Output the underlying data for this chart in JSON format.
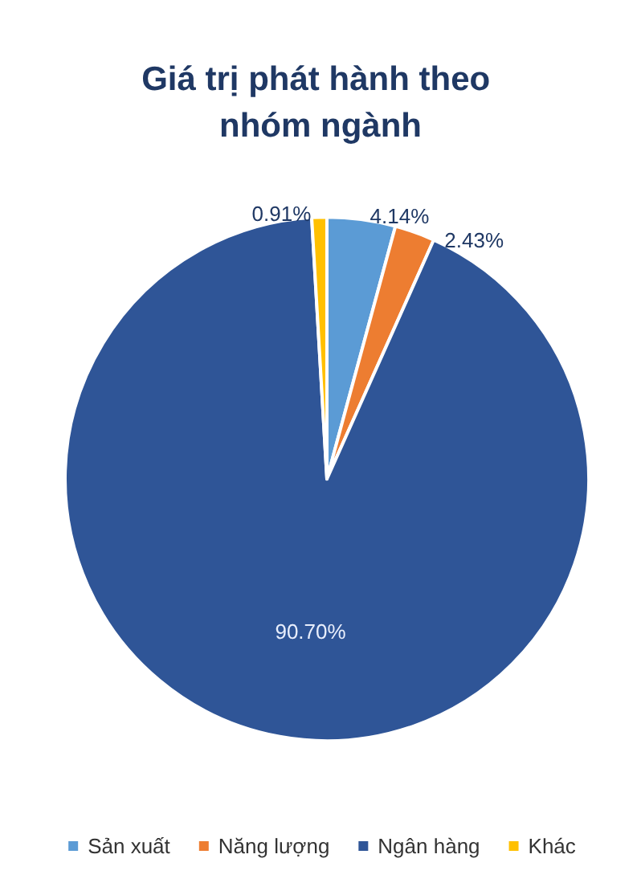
{
  "chart_data": {
    "type": "pie",
    "title": "Giá trị phát hành theo nhóm ngành",
    "categories": [
      "Sản xuất",
      "Năng lượng",
      "Ngân hàng",
      "Khác"
    ],
    "values": [
      4.14,
      2.43,
      90.7,
      0.91
    ],
    "value_labels": [
      "4.14%",
      "2.43%",
      "90.70%",
      "0.91%"
    ],
    "colors": [
      "#5b9bd5",
      "#ed7d31",
      "#2f5597",
      "#ffc000"
    ],
    "legend": "bottom"
  }
}
